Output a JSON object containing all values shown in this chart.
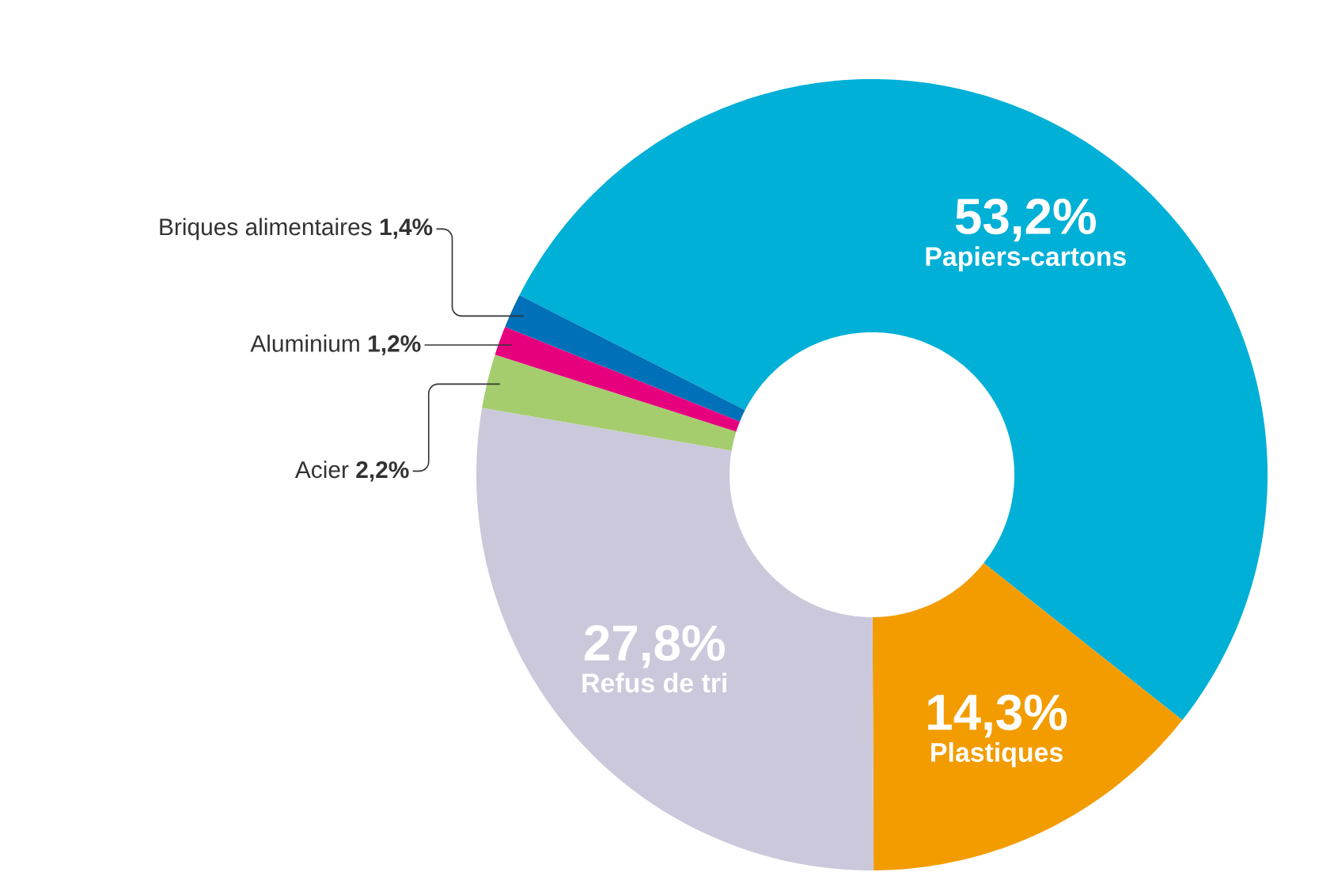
{
  "chart_data": {
    "type": "donut",
    "categories": [
      "Papiers-cartons",
      "Plastiques",
      "Refus de tri",
      "Acier",
      "Aluminium",
      "Briques alimentaires"
    ],
    "values": [
      53.2,
      14.3,
      27.8,
      2.2,
      1.2,
      1.4
    ],
    "colors": [
      "#00b0d6",
      "#f39c00",
      "#ccc8dc",
      "#a5cd6e",
      "#e6007e",
      "#0070b8"
    ],
    "value_labels": [
      "53,2%",
      "14,3%",
      "27,8%",
      "2,2%",
      "1,2%",
      "1,4%"
    ]
  }
}
